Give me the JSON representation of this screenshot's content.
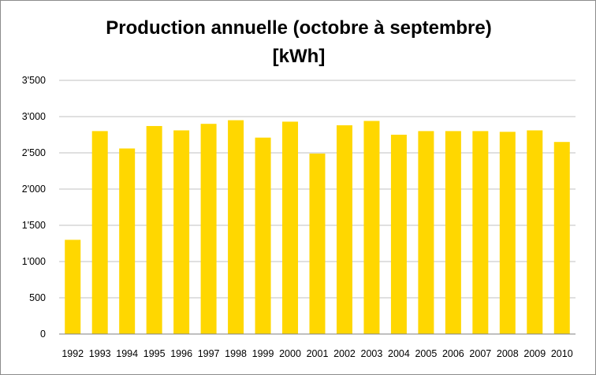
{
  "chart_data": {
    "type": "bar",
    "title": "Production annuelle (octobre à septembre)",
    "subtitle": "[kWh]",
    "categories": [
      "1992",
      "1993",
      "1994",
      "1995",
      "1996",
      "1997",
      "1998",
      "1999",
      "2000",
      "2001",
      "2002",
      "2003",
      "2004",
      "2005",
      "2006",
      "2007",
      "2008",
      "2009",
      "2010"
    ],
    "values": [
      1300,
      2800,
      2560,
      2870,
      2810,
      2900,
      2950,
      2710,
      2930,
      2490,
      2880,
      2940,
      2750,
      2800,
      2800,
      2800,
      2790,
      2810,
      2650
    ],
    "ylim": [
      0,
      3500
    ],
    "yticks": [
      0,
      500,
      1000,
      1500,
      2000,
      2500,
      3000,
      3500
    ],
    "ytick_labels": [
      "0",
      "500",
      "1'000",
      "1'500",
      "2'000",
      "2'500",
      "3'000",
      "3'500"
    ],
    "grid": true,
    "legend": "none",
    "xlabel": "",
    "ylabel": "",
    "colors": {
      "bar": "#FFD700",
      "grid": "#c0c0c0",
      "axis": "#808080"
    }
  }
}
